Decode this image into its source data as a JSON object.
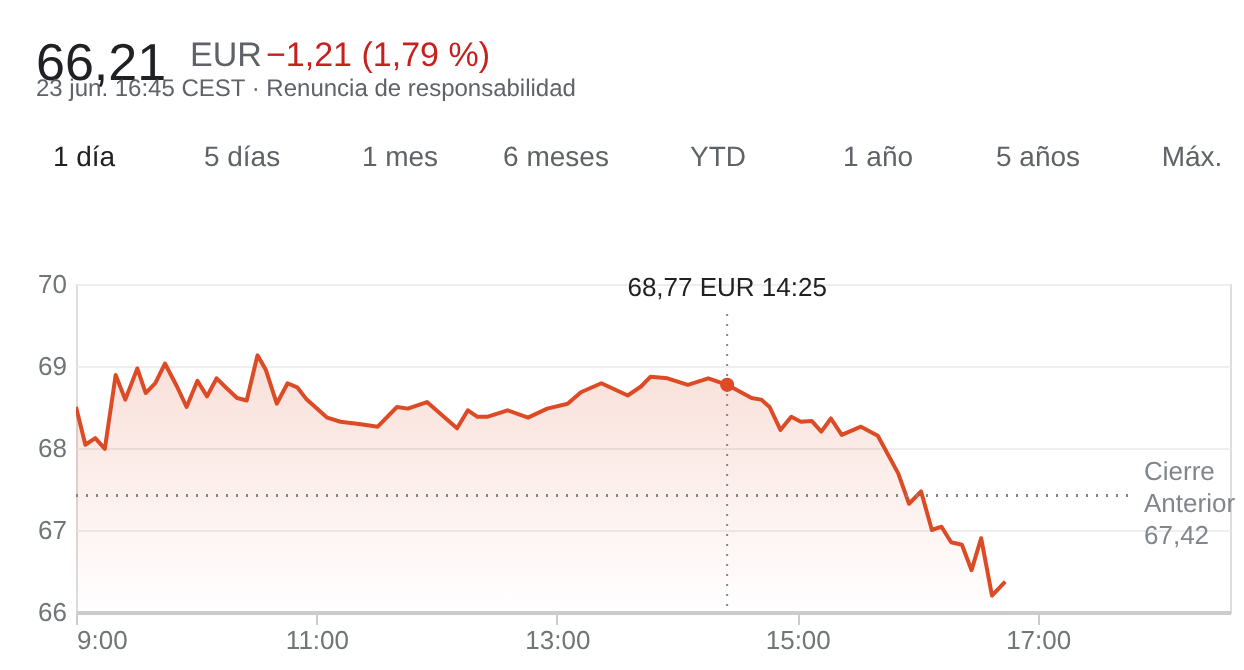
{
  "chart_data": {
    "type": "area",
    "grid": "y",
    "x": [
      9.0,
      9.078,
      9.16,
      9.24,
      9.33,
      9.41,
      9.51,
      9.58,
      9.66,
      9.74,
      9.84,
      9.92,
      10.01,
      10.09,
      10.17,
      10.26,
      10.34,
      10.42,
      10.51,
      10.58,
      10.67,
      10.76,
      10.84,
      10.92,
      11.09,
      11.2,
      11.37,
      11.51,
      11.67,
      11.76,
      11.92,
      12.06,
      12.17,
      12.26,
      12.34,
      12.42,
      12.59,
      12.76,
      12.92,
      13.09,
      13.2,
      13.37,
      13.59,
      13.7,
      13.78,
      13.92,
      14.09,
      14.26,
      14.417,
      14.62,
      14.7,
      14.77,
      14.86,
      14.95,
      15.03,
      15.12,
      15.2,
      15.28,
      15.37,
      15.53,
      15.67,
      15.84,
      15.93,
      16.03,
      16.12,
      16.2,
      16.28,
      16.37,
      16.45,
      16.53,
      16.62,
      16.73
    ],
    "series": [
      {
        "color": "#dd4b26",
        "values": [
          68.5,
          68.04,
          68.12,
          67.99,
          68.89,
          68.59,
          68.97,
          68.67,
          68.79,
          69.03,
          68.75,
          68.5,
          68.82,
          68.63,
          68.85,
          68.72,
          68.61,
          68.58,
          69.13,
          68.95,
          68.54,
          68.79,
          68.74,
          68.59,
          68.37,
          68.32,
          68.29,
          68.26,
          68.5,
          68.48,
          68.56,
          68.38,
          68.24,
          68.46,
          68.38,
          68.38,
          68.46,
          68.37,
          68.48,
          68.54,
          68.68,
          68.79,
          68.64,
          68.75,
          68.87,
          68.85,
          68.77,
          68.85,
          68.77,
          68.61,
          68.59,
          68.5,
          68.22,
          68.38,
          68.32,
          68.33,
          68.2,
          68.36,
          68.16,
          68.26,
          68.15,
          67.69,
          67.32,
          67.47,
          67.0,
          67.04,
          66.85,
          66.82,
          66.51,
          66.9,
          66.2,
          66.37
        ]
      }
    ],
    "xlim": [
      9,
      18.6
    ],
    "xticks": [
      {
        "value": 9,
        "label": "9:00"
      },
      {
        "value": 11,
        "label": "11:00"
      },
      {
        "value": 13,
        "label": "13:00"
      },
      {
        "value": 15,
        "label": "15:00"
      },
      {
        "value": 17,
        "label": "17:00"
      }
    ],
    "ylim": [
      66,
      70
    ],
    "yticks": [
      66,
      67,
      68,
      69,
      70
    ],
    "ref_lines": [
      {
        "axis": "y",
        "value": 67.42,
        "label": "Cierre Anterior 67,42",
        "line_style": "dotted",
        "color": "#80868b"
      },
      {
        "axis": "x",
        "value": 14.417,
        "line_style": "dotted",
        "color": "#80868b"
      }
    ],
    "annotations": [
      "66,21",
      "EUR",
      "−1,21 (1,79 %)",
      "23 jun. 16:45 CEST · Renuncia de responsabilidad",
      "1 día",
      "5 días",
      "1 mes",
      "6 meses",
      "YTD",
      "1 año",
      "5 años",
      "Máx.",
      "68,77 EUR  14:25"
    ]
  }
}
